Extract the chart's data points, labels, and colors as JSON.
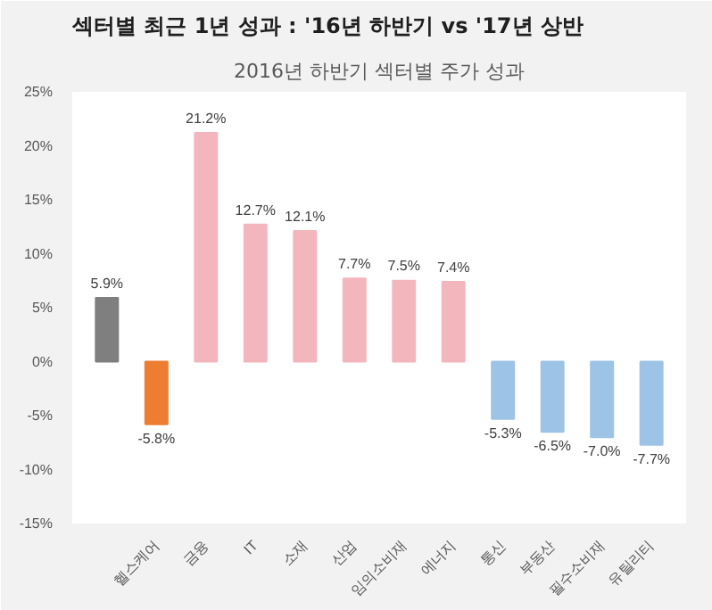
{
  "chart_data": {
    "type": "bar",
    "title": "섹터별 최근 1년 성과 : '16년 하반기 vs '17년 상반",
    "subtitle": "2016년 하반기 섹터별 주가 성과",
    "categories": [
      null,
      "헬스케어",
      "금융",
      "IT",
      "소재",
      "산업",
      "임의소비재",
      "에너지",
      "통신",
      "부동산",
      "필수소비재",
      "유틸리티"
    ],
    "values": [
      5.9,
      -5.8,
      21.2,
      12.7,
      12.1,
      7.7,
      7.5,
      7.4,
      -5.3,
      -6.5,
      -7.0,
      -7.7
    ],
    "colors": [
      "#7f7f7f",
      "#ed7d31",
      "#f4b6bd",
      "#f4b6bd",
      "#f4b6bd",
      "#f4b6bd",
      "#f4b6bd",
      "#f4b6bd",
      "#9dc3e6",
      "#9dc3e6",
      "#9dc3e6",
      "#9dc3e6"
    ],
    "value_labels": [
      "5.9%",
      "-5.8%",
      "21.2%",
      "12.7%",
      "12.1%",
      "7.7%",
      "7.5%",
      "7.4%",
      "-5.3%",
      "-6.5%",
      "-7.0%",
      "-7.7%"
    ],
    "ylim": [
      -15,
      25
    ],
    "yticks": [
      {
        "value": -15,
        "label": "-15%"
      },
      {
        "value": -10,
        "label": "-10%"
      },
      {
        "value": -5,
        "label": "-5%"
      },
      {
        "value": 0,
        "label": "0%"
      },
      {
        "value": 5,
        "label": "5%"
      },
      {
        "value": 10,
        "label": "10%"
      },
      {
        "value": 15,
        "label": "15%"
      },
      {
        "value": 20,
        "label": "20%"
      },
      {
        "value": 25,
        "label": "25%"
      }
    ],
    "grid": false
  }
}
